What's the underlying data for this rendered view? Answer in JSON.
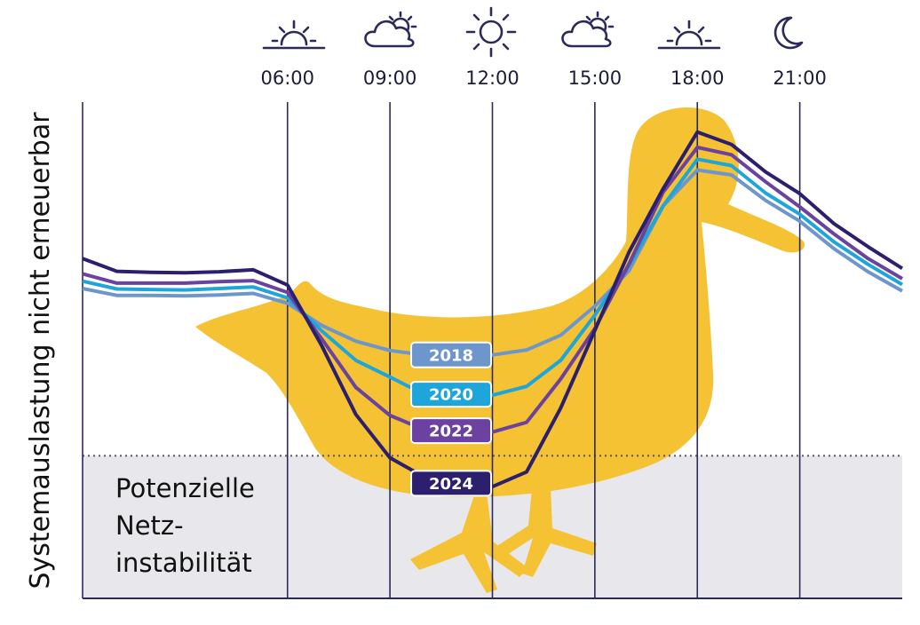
{
  "chart_data": {
    "type": "line",
    "title": "",
    "ylabel": "Systemauslastung nicht erneuerbar",
    "xlabel": "",
    "x_ticks": [
      "06:00",
      "09:00",
      "12:00",
      "15:00",
      "18:00",
      "21:00"
    ],
    "tick_icons": [
      "sunrise-icon",
      "cloud-sun-icon",
      "sun-icon",
      "cloud-sun-icon",
      "sunset-icon",
      "moon-icon"
    ],
    "x_range_hours": [
      0,
      24
    ],
    "y_range": [
      0,
      100
    ],
    "grid": "vertical lines at each tick",
    "threshold": {
      "value": 29,
      "label_lines": [
        "Potenzielle",
        "Netz-",
        "instabilität"
      ]
    },
    "x": [
      0,
      1,
      2,
      3,
      4,
      5,
      6,
      7,
      8,
      9,
      10,
      11,
      12,
      13,
      14,
      15,
      16,
      17,
      18,
      19,
      20,
      21,
      22,
      23,
      24
    ],
    "series": [
      {
        "name": "2018",
        "color": "#6d96cc",
        "values": [
          63,
          61.6,
          61.6,
          61.5,
          61.7,
          62,
          60,
          55.5,
          52.3,
          50.4,
          49.5,
          49.5,
          49.5,
          50.5,
          53.5,
          59.4,
          66.6,
          79.8,
          87.1,
          86.1,
          80.9,
          76.7,
          71.1,
          66.4,
          62.5
        ]
      },
      {
        "name": "2020",
        "color": "#1ea5d9",
        "values": [
          64.5,
          62.9,
          62.8,
          62.7,
          63,
          63.3,
          61.1,
          54.4,
          48.4,
          45,
          41.5,
          41.5,
          41.3,
          43.1,
          48.4,
          57.6,
          67.7,
          79.8,
          89.3,
          88,
          82.4,
          78.1,
          72.5,
          67.9,
          63.8
        ]
      },
      {
        "name": "2022",
        "color": "#6b42a0",
        "values": [
          66,
          64.1,
          64.1,
          64.1,
          64.4,
          64.6,
          62.2,
          52.8,
          42.9,
          37.2,
          34.3,
          34.1,
          33.8,
          35.8,
          44.6,
          54.9,
          68,
          82.6,
          91.7,
          90.2,
          84.7,
          79.6,
          74.1,
          69.1,
          65
        ]
      },
      {
        "name": "2024",
        "color": "#2b1f6e",
        "values": [
          69.1,
          66.5,
          66.3,
          66.2,
          66.4,
          66.8,
          63.7,
          51.4,
          37.4,
          28.6,
          24.7,
          23.4,
          22.7,
          25.7,
          38.7,
          54.5,
          70.4,
          83.3,
          94.8,
          92.3,
          86.7,
          82.3,
          76.2,
          71.5,
          67.1
        ]
      }
    ]
  },
  "colors": {
    "duck": "#f4c232",
    "threshold_zone": "#e8e8ec",
    "grid_line": "#2b2a5a",
    "badge_2018": "#6d96cc",
    "badge_2020": "#1ea5d9",
    "badge_2022": "#6b42a0",
    "badge_2024": "#2b1f6e"
  }
}
